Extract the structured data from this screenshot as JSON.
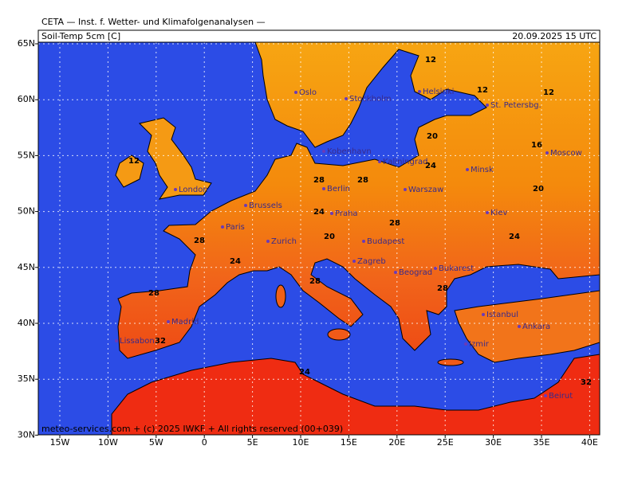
{
  "header": {
    "title": "CETA — Inst. f. Wetter- und Klimafolgenanalysen —",
    "field": "Soil-Temp 5cm [C]",
    "valid": "20.09.2025 15 UTC"
  },
  "lat_labels": [
    "65N",
    "60N",
    "55N",
    "50N",
    "45N",
    "40N",
    "35N",
    "30N"
  ],
  "lon_labels": [
    "15W",
    "10W",
    "5W",
    "0",
    "5E",
    "10E",
    "15E",
    "20E",
    "25E",
    "30E",
    "35E",
    "40E"
  ],
  "cities": [
    "Oslo",
    "Stockholm",
    "Helsinki",
    "St. Petersbg.",
    "Kobenhavn",
    "Kaliningrad",
    "Minsk",
    "Moscow",
    "London",
    "Berlin",
    "Warszaw",
    "Brussels",
    "Praha",
    "Kiev",
    "Paris",
    "Zurich",
    "Budapest",
    "Zagreb",
    "Beograd",
    "Bukarest",
    "Madrid",
    "Lissabon",
    "Istanbul",
    "Ankara",
    "Izmir",
    "Beirut"
  ],
  "contour_labels": [
    12,
    12,
    12,
    12,
    16,
    20,
    20,
    24,
    28,
    28,
    24,
    28,
    24,
    20,
    28,
    24,
    28,
    28,
    32,
    32,
    28,
    24
  ],
  "footer": "meteo-services.com + (c) 2025 IWKF + All rights reserved (00+039)"
}
